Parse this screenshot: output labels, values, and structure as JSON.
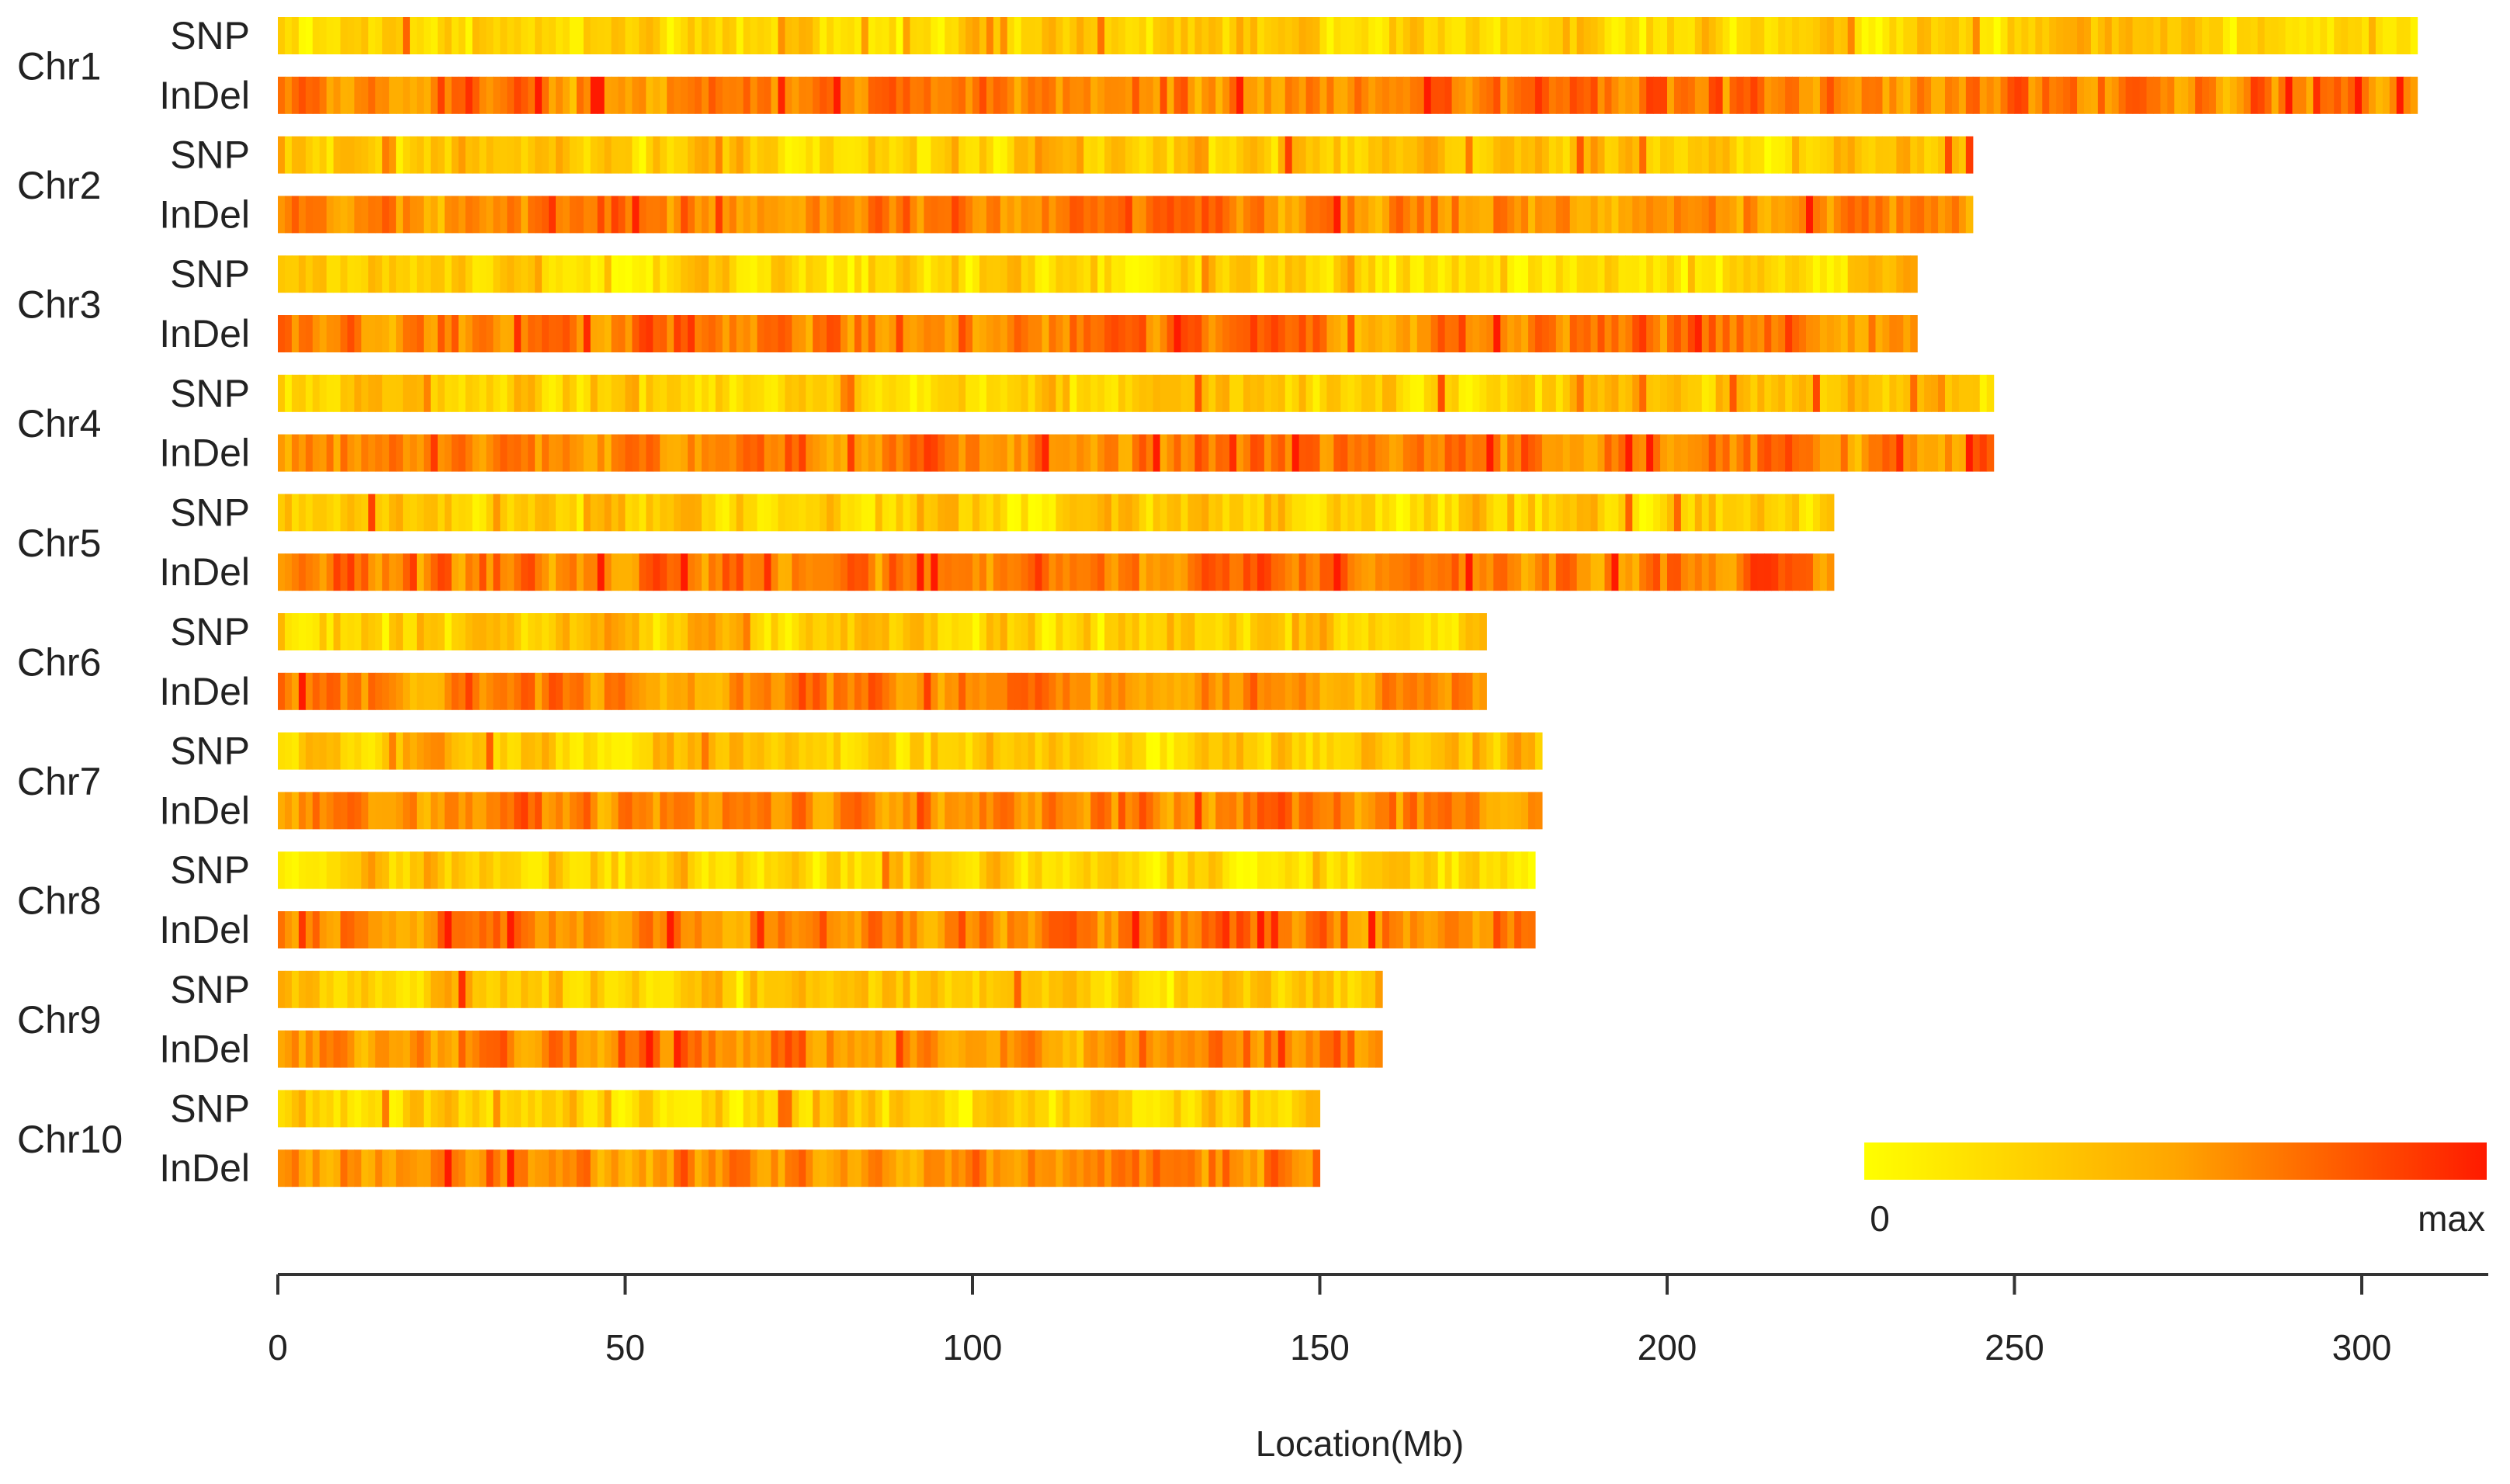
{
  "chart_data": {
    "type": "heatmap",
    "title": "",
    "xlabel": "Location(Mb)",
    "ylabel": "",
    "xlim": [
      0,
      318
    ],
    "x_ticks": [
      "0",
      "50",
      "100",
      "150",
      "200",
      "250",
      "300"
    ],
    "tick_values": [
      0,
      50,
      100,
      150,
      200,
      250,
      300
    ],
    "bin_size_mb": 1,
    "color_scale": {
      "low_label": "0",
      "high_label": "max",
      "low_color": "#ffff00",
      "high_color": "#ff1a00"
    },
    "chromosomes": [
      {
        "name": "Chr1",
        "length_mb": 308,
        "tracks": [
          {
            "name": "SNP",
            "mean_density": 0.25
          },
          {
            "name": "InDel",
            "mean_density": 0.62
          }
        ]
      },
      {
        "name": "Chr2",
        "length_mb": 244,
        "tracks": [
          {
            "name": "SNP",
            "mean_density": 0.3
          },
          {
            "name": "InDel",
            "mean_density": 0.6
          }
        ]
      },
      {
        "name": "Chr3",
        "length_mb": 236,
        "tracks": [
          {
            "name": "SNP",
            "mean_density": 0.24
          },
          {
            "name": "InDel",
            "mean_density": 0.62
          }
        ]
      },
      {
        "name": "Chr4",
        "length_mb": 247,
        "tracks": [
          {
            "name": "SNP",
            "mean_density": 0.28
          },
          {
            "name": "InDel",
            "mean_density": 0.62
          }
        ]
      },
      {
        "name": "Chr5",
        "length_mb": 224,
        "tracks": [
          {
            "name": "SNP",
            "mean_density": 0.26
          },
          {
            "name": "InDel",
            "mean_density": 0.64
          }
        ]
      },
      {
        "name": "Chr6",
        "length_mb": 174,
        "tracks": [
          {
            "name": "SNP",
            "mean_density": 0.26
          },
          {
            "name": "InDel",
            "mean_density": 0.58
          }
        ]
      },
      {
        "name": "Chr7",
        "length_mb": 182,
        "tracks": [
          {
            "name": "SNP",
            "mean_density": 0.27
          },
          {
            "name": "InDel",
            "mean_density": 0.58
          }
        ]
      },
      {
        "name": "Chr8",
        "length_mb": 181,
        "tracks": [
          {
            "name": "SNP",
            "mean_density": 0.24
          },
          {
            "name": "InDel",
            "mean_density": 0.64
          }
        ]
      },
      {
        "name": "Chr9",
        "length_mb": 159,
        "tracks": [
          {
            "name": "SNP",
            "mean_density": 0.3
          },
          {
            "name": "InDel",
            "mean_density": 0.6
          }
        ]
      },
      {
        "name": "Chr10",
        "length_mb": 150,
        "tracks": [
          {
            "name": "SNP",
            "mean_density": 0.26
          },
          {
            "name": "InDel",
            "mean_density": 0.6
          }
        ]
      }
    ]
  }
}
